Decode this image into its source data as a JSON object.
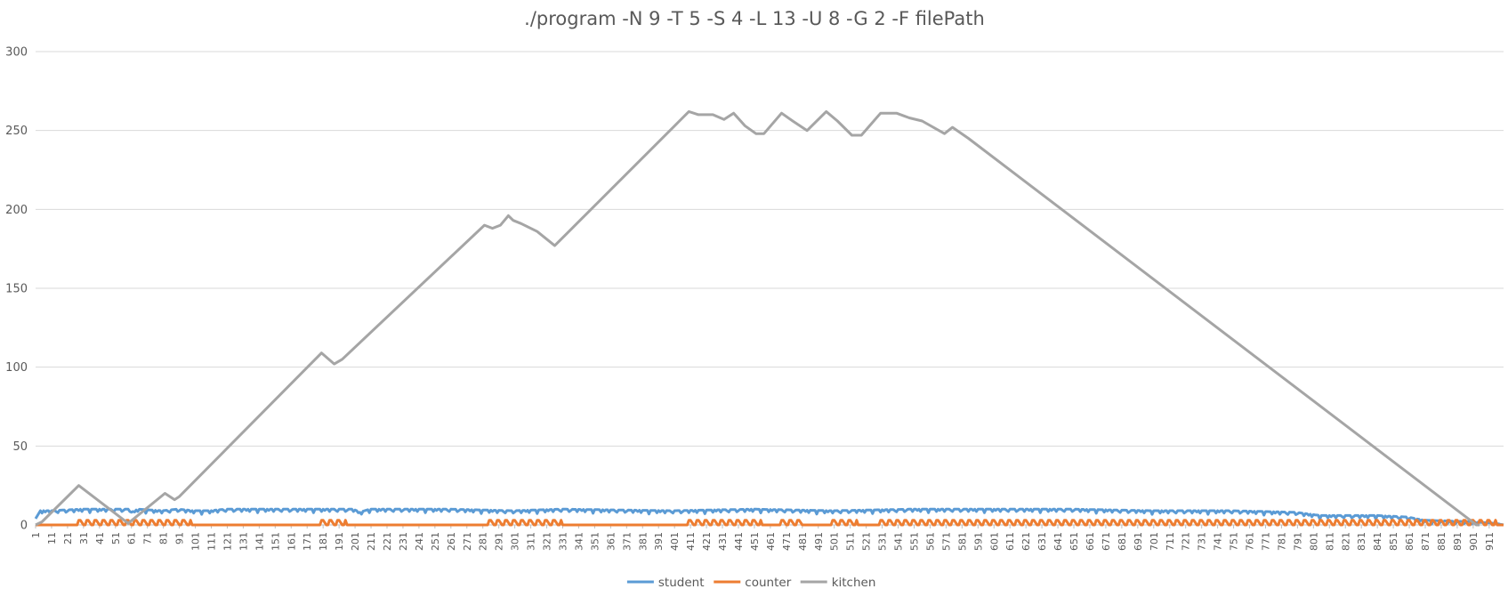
{
  "chart_data": {
    "type": "line",
    "title": "./program -N 9 -T 5 -S 4 -L 13 -U 8 -G 2 -F filePath",
    "xlabel": "",
    "ylabel": "",
    "ylim": [
      0,
      300
    ],
    "yticks": [
      0,
      50,
      100,
      150,
      200,
      250,
      300
    ],
    "xlim": [
      1,
      920
    ],
    "xtick_start": 1,
    "xtick_step": 10,
    "xtick_end": 911,
    "grid": true,
    "legend_position": "bottom",
    "series": [
      {
        "name": "student",
        "color": "#5b9bd5",
        "points": [
          [
            1,
            4
          ],
          [
            4,
            9
          ],
          [
            10,
            9
          ],
          [
            30,
            10
          ],
          [
            60,
            10
          ],
          [
            61,
            8
          ],
          [
            65,
            10
          ],
          [
            80,
            9
          ],
          [
            90,
            10
          ],
          [
            100,
            9
          ],
          [
            110,
            9
          ],
          [
            120,
            10
          ],
          [
            180,
            10
          ],
          [
            200,
            10
          ],
          [
            204,
            8
          ],
          [
            210,
            10
          ],
          [
            260,
            10
          ],
          [
            300,
            9
          ],
          [
            330,
            10
          ],
          [
            400,
            9
          ],
          [
            450,
            10
          ],
          [
            500,
            9
          ],
          [
            550,
            10
          ],
          [
            600,
            10
          ],
          [
            650,
            10
          ],
          [
            700,
            9
          ],
          [
            750,
            9
          ],
          [
            790,
            8
          ],
          [
            805,
            6
          ],
          [
            840,
            6
          ],
          [
            860,
            5
          ],
          [
            870,
            3
          ],
          [
            900,
            2
          ],
          [
            915,
            1
          ],
          [
            920,
            0
          ]
        ],
        "jitter": 1.5
      },
      {
        "name": "counter",
        "color": "#ed7d31",
        "points": [
          [
            1,
            0
          ],
          [
            920,
            0
          ]
        ],
        "bumps": [
          [
            28,
            98,
            3
          ],
          [
            180,
            195,
            3
          ],
          [
            285,
            330,
            3
          ],
          [
            410,
            455,
            3
          ],
          [
            468,
            482,
            3
          ],
          [
            500,
            515,
            3
          ],
          [
            530,
            915,
            3
          ]
        ],
        "bump_period": 5
      },
      {
        "name": "kitchen",
        "color": "#a5a5a5",
        "points": [
          [
            1,
            0
          ],
          [
            5,
            2
          ],
          [
            28,
            25
          ],
          [
            59,
            1
          ],
          [
            82,
            20
          ],
          [
            88,
            16
          ],
          [
            91,
            18
          ],
          [
            180,
            109
          ],
          [
            188,
            102
          ],
          [
            193,
            105
          ],
          [
            282,
            190
          ],
          [
            287,
            188
          ],
          [
            292,
            190
          ],
          [
            297,
            196
          ],
          [
            300,
            193
          ],
          [
            305,
            191
          ],
          [
            315,
            186
          ],
          [
            326,
            177
          ],
          [
            410,
            262
          ],
          [
            416,
            260
          ],
          [
            425,
            260
          ],
          [
            432,
            257
          ],
          [
            438,
            261
          ],
          [
            445,
            253
          ],
          [
            452,
            248
          ],
          [
            457,
            248
          ],
          [
            468,
            261
          ],
          [
            475,
            256
          ],
          [
            484,
            250
          ],
          [
            496,
            262
          ],
          [
            503,
            256
          ],
          [
            512,
            247
          ],
          [
            518,
            247
          ],
          [
            530,
            261
          ],
          [
            540,
            261
          ],
          [
            548,
            258
          ],
          [
            556,
            256
          ],
          [
            570,
            248
          ],
          [
            575,
            252
          ],
          [
            585,
            245
          ],
          [
            903,
            0
          ],
          [
            905,
            0
          ]
        ]
      }
    ]
  }
}
